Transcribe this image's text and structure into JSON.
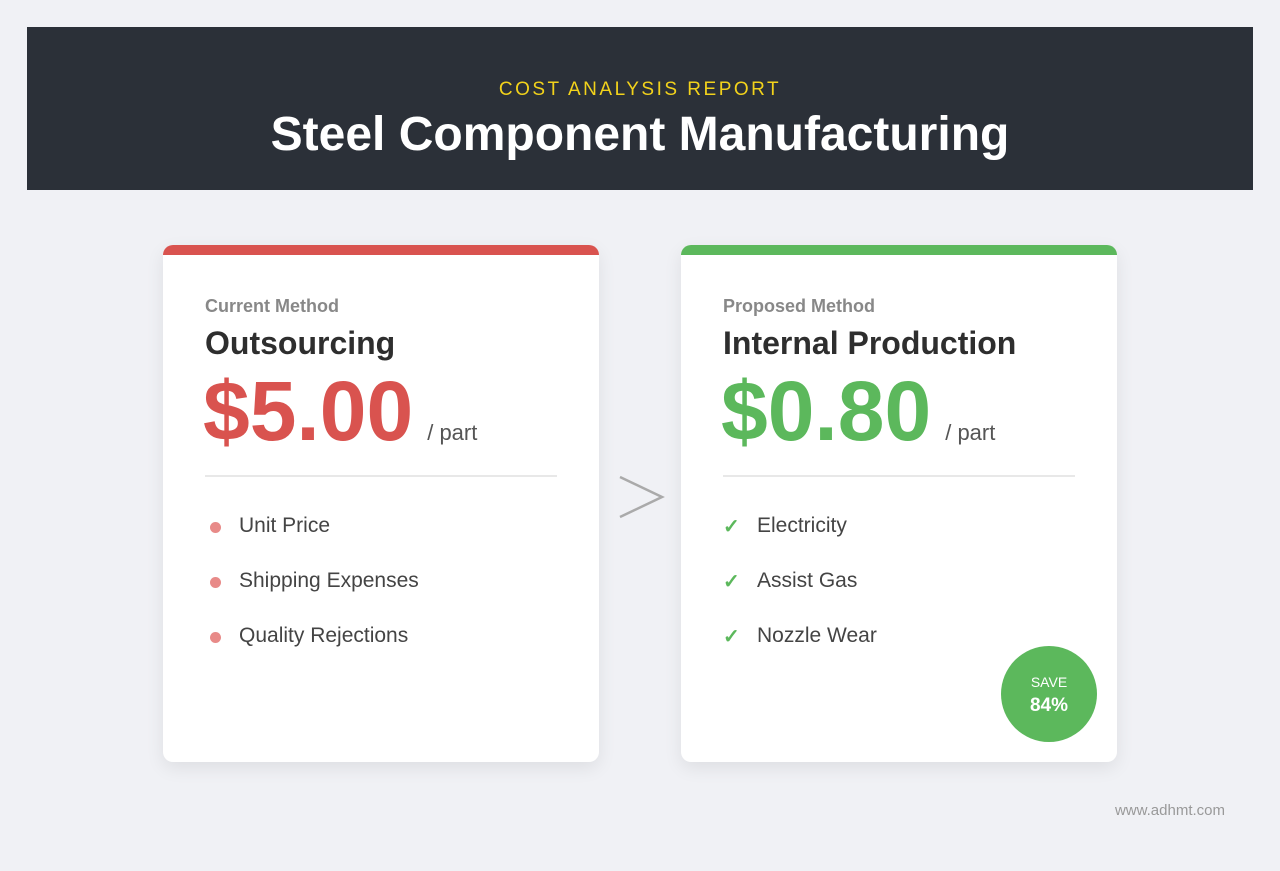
{
  "header": {
    "subtitle": "COST ANALYSIS REPORT",
    "title": "Steel Component Manufacturing"
  },
  "current": {
    "label": "Current Method",
    "name": "Outsourcing",
    "price": "$5.00",
    "unit": "/ part",
    "color": "#d9534f",
    "items": [
      "Unit Price",
      "Shipping Expenses",
      "Quality Rejections"
    ]
  },
  "proposed": {
    "label": "Proposed Method",
    "name": "Internal Production",
    "price": "$0.80",
    "unit": "/ part",
    "color": "#5cb85c",
    "items": [
      "Electricity",
      "Assist Gas",
      "Nozzle Wear"
    ]
  },
  "badge": {
    "label": "SAVE",
    "value": "84%"
  },
  "footer": "www.adhmt.com"
}
